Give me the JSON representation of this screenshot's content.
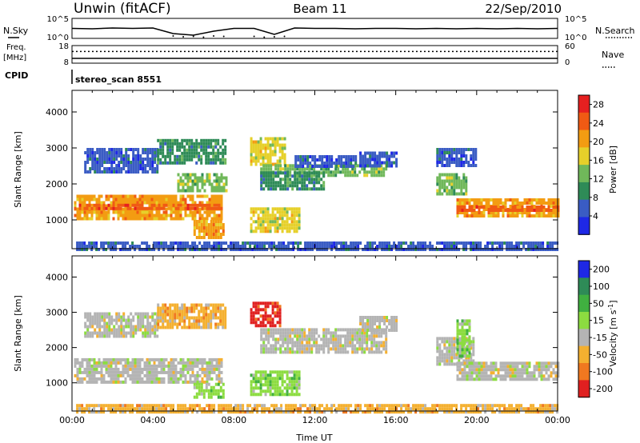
{
  "header": {
    "station": "Unwin (fitACF)",
    "beam": "Beam 11",
    "date": "22/Sep/2010"
  },
  "side_labels": {
    "nsky": "N.Sky",
    "nsearch": "N.Search",
    "freq_line1": "Freq.",
    "freq_line2": "[MHz]",
    "nave": "Nave",
    "cpid": "CPID",
    "cpid_value": "stereo_scan 8551"
  },
  "chart_data": [
    {
      "type": "line",
      "name": "noise",
      "yticks_left": [
        "10^5",
        "10^0"
      ],
      "yticks_right": [
        "10^5",
        "10^0"
      ],
      "series": [
        {
          "name": "N.Sky",
          "style": "solid",
          "x": [
            0,
            1,
            2,
            3,
            4,
            5,
            6,
            7,
            8,
            9,
            10,
            11,
            12,
            13,
            14,
            15,
            16,
            17,
            18,
            19,
            20,
            21,
            22,
            23,
            24
          ],
          "y": [
            2.5,
            2.4,
            2.6,
            2.5,
            2.6,
            1.2,
            0.8,
            1.8,
            2.5,
            2.5,
            1.0,
            2.6,
            2.5,
            2.5,
            2.4,
            2.5,
            2.5,
            2.4,
            2.5,
            2.4,
            2.5,
            2.4,
            2.5,
            2.4,
            2.5
          ]
        },
        {
          "name": "N.Search",
          "style": "dotted",
          "x": [
            5,
            5.5,
            6,
            6.5,
            7,
            7.5,
            9,
            9.5,
            10,
            10.5
          ],
          "y": [
            0.6,
            0.4,
            0.5,
            0.3,
            0.6,
            0.5,
            0.5,
            0.3,
            0.4,
            0.5
          ]
        }
      ]
    },
    {
      "type": "line",
      "name": "freq-nave",
      "yticks_left": [
        "18",
        "8"
      ],
      "yticks_right": [
        "60",
        "0"
      ],
      "series": [
        {
          "name": "Freq",
          "unit": "MHz",
          "style": "solid",
          "x": [
            0,
            24
          ],
          "y": [
            10.7,
            10.7
          ]
        },
        {
          "name": "Nave",
          "style": "dotted",
          "x": [
            0,
            24
          ],
          "y": [
            40,
            40
          ]
        }
      ]
    },
    {
      "type": "heatmap",
      "name": "power",
      "ylabel": "Slant Range [km]",
      "yticks": [
        1000,
        2000,
        3000,
        4000
      ],
      "ylim": [
        200,
        4600
      ],
      "xlim": [
        0,
        24
      ],
      "colorbar": {
        "label": "Power [dB]",
        "ticks": [
          4,
          8,
          12,
          16,
          20,
          24,
          28
        ],
        "colors": [
          "#1e28e6",
          "#3a5cc4",
          "#2e8b57",
          "#70b85a",
          "#e6d02a",
          "#f39c12",
          "#f05a14",
          "#e62020"
        ],
        "range": [
          0,
          30
        ]
      },
      "regions": [
        {
          "x": [
            0.1,
            7.4
          ],
          "y": [
            1000,
            1700
          ],
          "level": 20
        },
        {
          "x": [
            0.1,
            7.4
          ],
          "y": [
            1300,
            1450
          ],
          "level": 26
        },
        {
          "x": [
            0.6,
            4.2
          ],
          "y": [
            2350,
            3000
          ],
          "level": 6
        },
        {
          "x": [
            4.2,
            7.6
          ],
          "y": [
            2600,
            3250
          ],
          "level": 10
        },
        {
          "x": [
            5.2,
            7.6
          ],
          "y": [
            1800,
            2300
          ],
          "level": 14
        },
        {
          "x": [
            6.0,
            7.5
          ],
          "y": [
            550,
            1000
          ],
          "level": 22
        },
        {
          "x": [
            8.8,
            11.2
          ],
          "y": [
            700,
            1350
          ],
          "level": 18
        },
        {
          "x": [
            8.8,
            10.5
          ],
          "y": [
            2500,
            3300
          ],
          "level": 16
        },
        {
          "x": [
            9.3,
            15.5
          ],
          "y": [
            2200,
            2550
          ],
          "level": 12
        },
        {
          "x": [
            9.3,
            12.5
          ],
          "y": [
            1900,
            2350
          ],
          "level": 10
        },
        {
          "x": [
            11.0,
            14.0
          ],
          "y": [
            2450,
            2800
          ],
          "level": 6
        },
        {
          "x": [
            14.2,
            16.0
          ],
          "y": [
            2500,
            2900
          ],
          "level": 7
        },
        {
          "x": [
            18.0,
            20.0
          ],
          "y": [
            2500,
            3000
          ],
          "level": 5
        },
        {
          "x": [
            18.0,
            19.5
          ],
          "y": [
            1700,
            2300
          ],
          "level": 12
        },
        {
          "x": [
            19.0,
            24.0
          ],
          "y": [
            1100,
            1600
          ],
          "level": 20
        },
        {
          "x": [
            19.0,
            24.0
          ],
          "y": [
            1250,
            1400
          ],
          "level": 24
        },
        {
          "x": [
            0.2,
            24.0
          ],
          "y": [
            200,
            400
          ],
          "level": 6
        }
      ]
    },
    {
      "type": "heatmap",
      "name": "velocity",
      "ylabel": "Slant Range [km]",
      "xlabel": "Time UT",
      "xticks": [
        "00:00",
        "04:00",
        "08:00",
        "12:00",
        "16:00",
        "20:00",
        "00:00"
      ],
      "yticks": [
        1000,
        2000,
        3000,
        4000
      ],
      "ylim": [
        200,
        4600
      ],
      "xlim": [
        0,
        24
      ],
      "colorbar": {
        "label": "Velocity [m s^-1]",
        "ticks": [
          "200",
          "100",
          "50",
          "15",
          "-15",
          "-50",
          "-100",
          "-200"
        ],
        "colors": [
          "#1e28e6",
          "#2e8b57",
          "#40b040",
          "#8cdc40",
          "#b4b4b4",
          "#f4b030",
          "#f07820",
          "#e02020"
        ]
      },
      "regions": [
        {
          "x": [
            0.1,
            7.4
          ],
          "y": [
            1000,
            1700
          ],
          "color": "#b4b4b4"
        },
        {
          "x": [
            0.6,
            4.2
          ],
          "y": [
            2350,
            3000
          ],
          "color": "#b4b4b4"
        },
        {
          "x": [
            4.2,
            7.6
          ],
          "y": [
            2600,
            3250
          ],
          "color": "#f4b030"
        },
        {
          "x": [
            6.0,
            7.5
          ],
          "y": [
            550,
            1000
          ],
          "color": "#8cdc40"
        },
        {
          "x": [
            8.8,
            11.2
          ],
          "y": [
            700,
            1350
          ],
          "color": "#8cdc40"
        },
        {
          "x": [
            8.8,
            10.3
          ],
          "y": [
            2600,
            3300
          ],
          "color": "#e02020"
        },
        {
          "x": [
            9.3,
            15.5
          ],
          "y": [
            1900,
            2550
          ],
          "color": "#b4b4b4"
        },
        {
          "x": [
            14.2,
            16.0
          ],
          "y": [
            2500,
            2900
          ],
          "color": "#b4b4b4"
        },
        {
          "x": [
            18.0,
            19.8
          ],
          "y": [
            1500,
            2300
          ],
          "color": "#b4b4b4"
        },
        {
          "x": [
            19.0,
            24.0
          ],
          "y": [
            1100,
            1600
          ],
          "color": "#b4b4b4"
        },
        {
          "x": [
            19.0,
            19.6
          ],
          "y": [
            1800,
            2800
          ],
          "color": "#8cdc40"
        },
        {
          "x": [
            0.2,
            24.0
          ],
          "y": [
            200,
            400
          ],
          "color": "#f4b030"
        }
      ]
    }
  ]
}
